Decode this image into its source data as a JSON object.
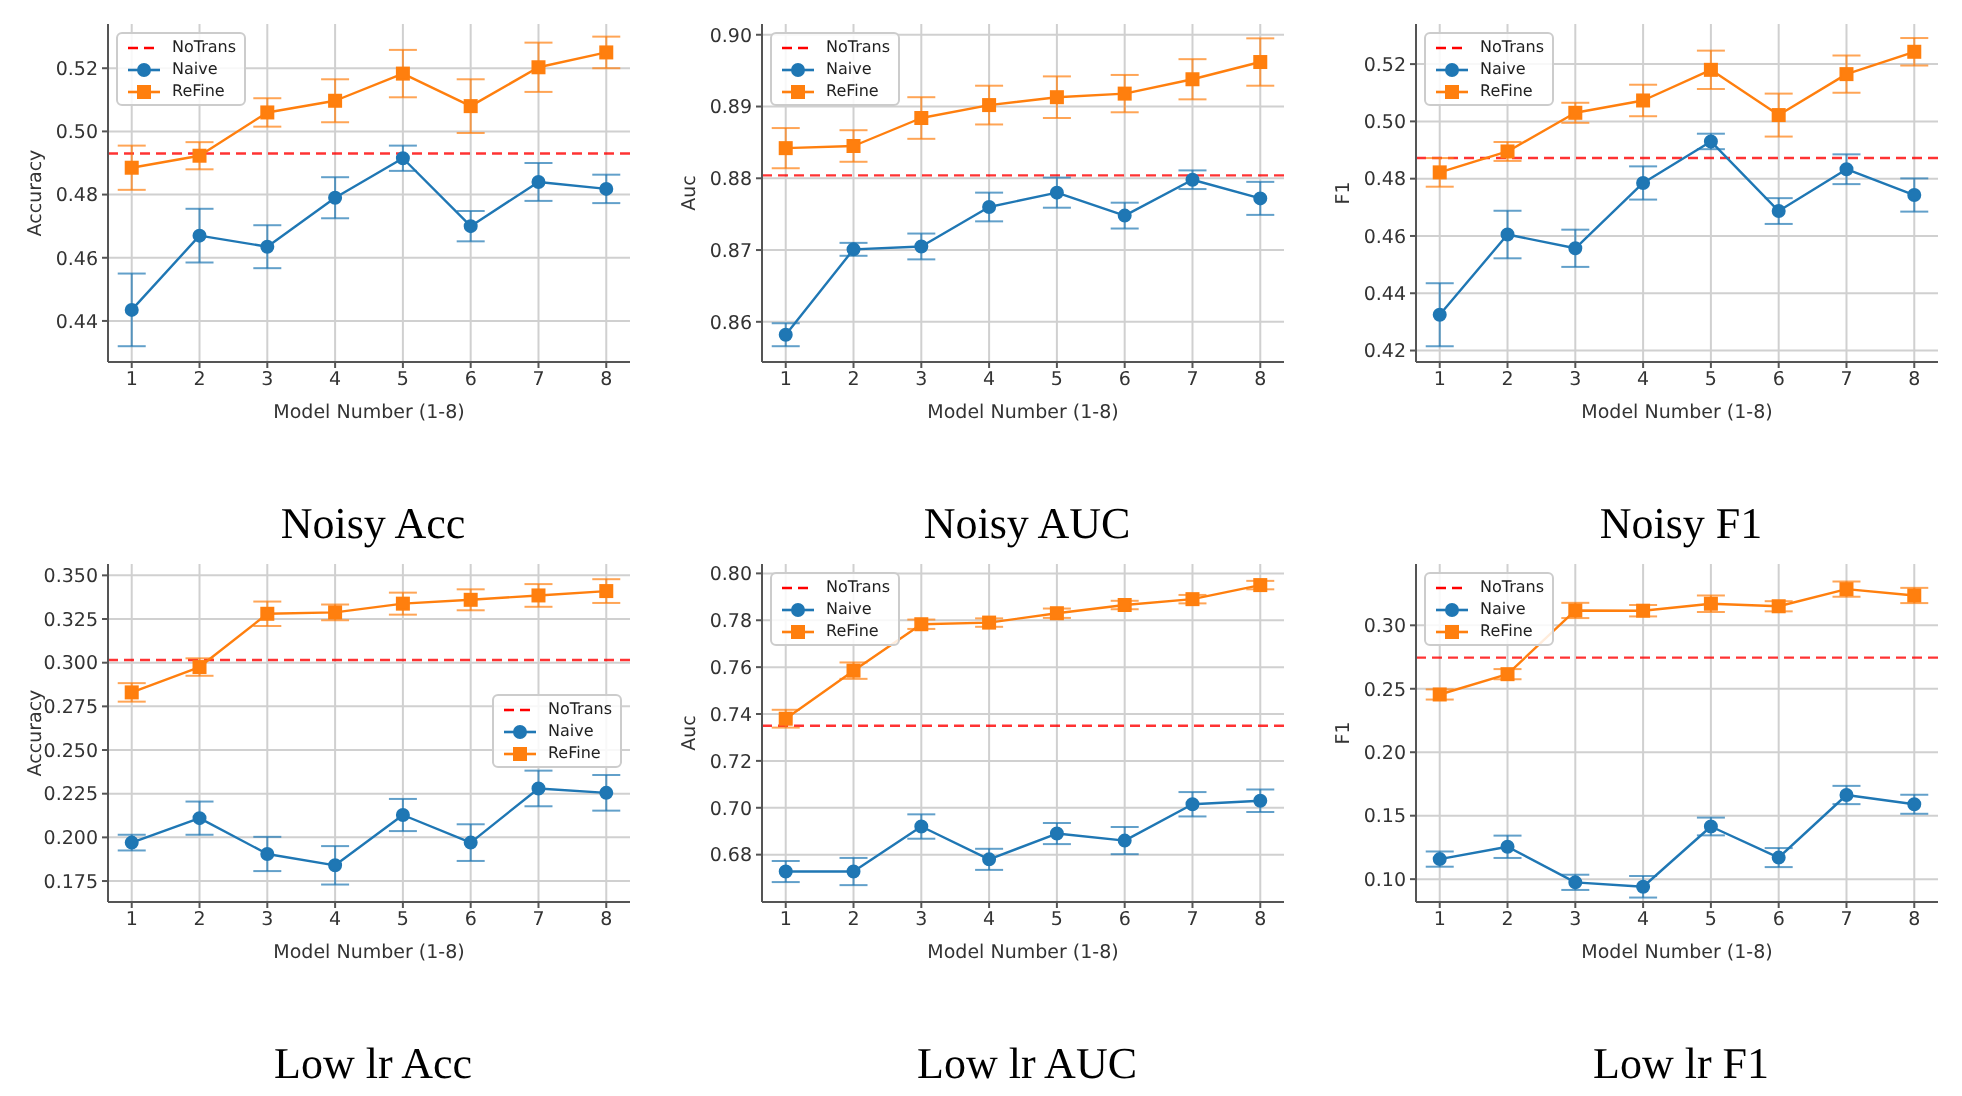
{
  "chart_data": [
    {
      "type": "line",
      "title": "Noisy Acc",
      "xlabel": "Model Number (1-8)",
      "ylabel": "Accuracy",
      "x": [
        1,
        2,
        3,
        4,
        5,
        6,
        7,
        8
      ],
      "xlim": [
        0.65,
        8.35
      ],
      "xticks": [
        1,
        2,
        3,
        4,
        5,
        6,
        7,
        8
      ],
      "ylim": [
        0.427,
        0.534
      ],
      "yticks": [
        0.44,
        0.46,
        0.48,
        {
          "value": 0.5,
          "label": "0.50"
        },
        0.52
      ],
      "grid": true,
      "legend": "top left",
      "line_style": "solid",
      "ref_lines": [
        {
          "axis": "y",
          "value": 0.493,
          "label": "NoTrans",
          "color": "#ff0000",
          "line_style": "dashed"
        }
      ],
      "series": [
        {
          "name": "Naive",
          "color": "#1f77b4",
          "marker": "circle",
          "values": [
            0.4435,
            0.467,
            0.4635,
            0.479,
            0.4915,
            0.47,
            0.484,
            0.4818
          ],
          "errors": [
            0.0115,
            0.0085,
            0.0068,
            0.0065,
            0.004,
            0.0048,
            0.006,
            0.0045
          ]
        },
        {
          "name": "ReFine",
          "color": "#ff7f0e",
          "marker": "square",
          "values": [
            0.4885,
            0.4923,
            0.506,
            0.5097,
            0.5183,
            0.508,
            0.5203,
            0.525
          ],
          "errors": [
            0.007,
            0.0043,
            0.0045,
            0.0068,
            0.0075,
            0.0085,
            0.0078,
            0.005
          ]
        }
      ]
    },
    {
      "type": "line",
      "title": "Noisy AUC",
      "xlabel": "Model Number (1-8)",
      "ylabel": "Auc",
      "x": [
        1,
        2,
        3,
        4,
        5,
        6,
        7,
        8
      ],
      "xlim": [
        0.65,
        8.35
      ],
      "xticks": [
        1,
        2,
        3,
        4,
        5,
        6,
        7,
        8
      ],
      "ylim": [
        0.8544,
        0.9015
      ],
      "yticks": [
        0.86,
        0.87,
        0.88,
        0.89,
        {
          "value": 0.9,
          "label": "0.90"
        }
      ],
      "grid": true,
      "legend": "top left",
      "line_style": "solid",
      "ref_lines": [
        {
          "axis": "y",
          "value": 0.8804,
          "label": "NoTrans",
          "color": "#ff0000",
          "line_style": "dashed"
        }
      ],
      "series": [
        {
          "name": "Naive",
          "color": "#1f77b4",
          "marker": "circle",
          "values": [
            0.8582,
            0.8701,
            0.8705,
            0.876,
            0.878,
            0.8748,
            0.8798,
            0.8772
          ],
          "errors": [
            0.0016,
            0.0009,
            0.0018,
            0.002,
            0.0021,
            0.0018,
            0.0013,
            0.0023
          ]
        },
        {
          "name": "ReFine",
          "color": "#ff7f0e",
          "marker": "square",
          "values": [
            0.8842,
            0.8845,
            0.8884,
            0.8902,
            0.8913,
            0.8918,
            0.8938,
            0.8962
          ],
          "errors": [
            0.0028,
            0.0022,
            0.0029,
            0.0027,
            0.0029,
            0.0026,
            0.0028,
            0.0033
          ]
        }
      ]
    },
    {
      "type": "line",
      "title": "Noisy F1",
      "xlabel": "Model Number (1-8)",
      "ylabel": "F1",
      "x": [
        1,
        2,
        3,
        4,
        5,
        6,
        7,
        8
      ],
      "xlim": [
        0.65,
        8.35
      ],
      "xticks": [
        1,
        2,
        3,
        4,
        5,
        6,
        7,
        8
      ],
      "ylim": [
        0.416,
        0.534
      ],
      "yticks": [
        0.42,
        0.44,
        0.46,
        0.48,
        {
          "value": 0.5,
          "label": "0.50"
        },
        0.52
      ],
      "grid": true,
      "legend": "top left",
      "line_style": "solid",
      "ref_lines": [
        {
          "axis": "y",
          "value": 0.4872,
          "label": "NoTrans",
          "color": "#ff0000",
          "line_style": "dashed"
        }
      ],
      "series": [
        {
          "name": "Naive",
          "color": "#1f77b4",
          "marker": "circle",
          "values": [
            0.4325,
            0.4605,
            0.4557,
            0.4785,
            0.493,
            0.4687,
            0.4833,
            0.4743
          ],
          "errors": [
            0.011,
            0.0083,
            0.0065,
            0.0058,
            0.0027,
            0.0045,
            0.0052,
            0.0058
          ]
        },
        {
          "name": "ReFine",
          "color": "#ff7f0e",
          "marker": "square",
          "values": [
            0.4822,
            0.4895,
            0.503,
            0.5073,
            0.518,
            0.5022,
            0.5165,
            0.5243
          ],
          "errors": [
            0.005,
            0.0033,
            0.0035,
            0.0055,
            0.0067,
            0.0075,
            0.0065,
            0.0048
          ]
        }
      ]
    },
    {
      "type": "line",
      "title": "Low lr Acc",
      "xlabel": "Model Number (1-8)",
      "ylabel": "Accuracy",
      "x": [
        1,
        2,
        3,
        4,
        5,
        6,
        7,
        8
      ],
      "xlim": [
        0.65,
        8.35
      ],
      "xticks": [
        1,
        2,
        3,
        4,
        5,
        6,
        7,
        8
      ],
      "ylim": [
        0.163,
        0.3565
      ],
      "yticks": [
        0.175,
        {
          "value": 0.2,
          "label": "0.200"
        },
        0.225,
        {
          "value": 0.25,
          "label": "0.250"
        },
        0.275,
        {
          "value": 0.3,
          "label": "0.300"
        },
        0.325,
        {
          "value": 0.35,
          "label": "0.350"
        }
      ],
      "grid": true,
      "legend": "right",
      "line_style": "solid",
      "ref_lines": [
        {
          "axis": "y",
          "value": 0.3015,
          "label": "NoTrans",
          "color": "#ff0000",
          "line_style": "dashed"
        }
      ],
      "series": [
        {
          "name": "Naive",
          "color": "#1f77b4",
          "marker": "circle",
          "values": [
            0.197,
            0.211,
            0.1905,
            0.184,
            0.2128,
            0.197,
            0.228,
            0.2255
          ],
          "errors": [
            0.0045,
            0.0095,
            0.0098,
            0.011,
            0.0092,
            0.0105,
            0.0102,
            0.0102
          ]
        },
        {
          "name": "ReFine",
          "color": "#ff7f0e",
          "marker": "square",
          "values": [
            0.283,
            0.2975,
            0.328,
            0.3288,
            0.3338,
            0.336,
            0.3385,
            0.341
          ],
          "errors": [
            0.0053,
            0.005,
            0.007,
            0.0045,
            0.0063,
            0.006,
            0.0065,
            0.0068
          ]
        }
      ]
    },
    {
      "type": "line",
      "title": "Low lr AUC",
      "xlabel": "Model Number (1-8)",
      "ylabel": "Auc",
      "x": [
        1,
        2,
        3,
        4,
        5,
        6,
        7,
        8
      ],
      "xlim": [
        0.65,
        8.35
      ],
      "xticks": [
        1,
        2,
        3,
        4,
        5,
        6,
        7,
        8
      ],
      "ylim": [
        0.6598,
        0.804
      ],
      "yticks": [
        0.68,
        {
          "value": 0.7,
          "label": "0.70"
        },
        0.72,
        0.74,
        0.76,
        0.78,
        {
          "value": 0.8,
          "label": "0.80"
        }
      ],
      "grid": true,
      "legend": "top left",
      "line_style": "solid",
      "ref_lines": [
        {
          "axis": "y",
          "value": 0.735,
          "label": "NoTrans",
          "color": "#ff0000",
          "line_style": "dashed"
        }
      ],
      "series": [
        {
          "name": "Naive",
          "color": "#1f77b4",
          "marker": "circle",
          "values": [
            0.6728,
            0.6728,
            0.692,
            0.678,
            0.689,
            0.686,
            0.7015,
            0.703
          ],
          "errors": [
            0.0045,
            0.0058,
            0.0052,
            0.0045,
            0.0045,
            0.0058,
            0.0052,
            0.0048
          ]
        },
        {
          "name": "ReFine",
          "color": "#ff7f0e",
          "marker": "square",
          "values": [
            0.738,
            0.7585,
            0.7783,
            0.779,
            0.783,
            0.7865,
            0.789,
            0.795
          ],
          "errors": [
            0.0038,
            0.0035,
            0.002,
            0.0018,
            0.002,
            0.0018,
            0.0018,
            0.0018
          ]
        }
      ]
    },
    {
      "type": "line",
      "title": "Low lr F1",
      "xlabel": "Model Number (1-8)",
      "ylabel": "F1",
      "x": [
        1,
        2,
        3,
        4,
        5,
        6,
        7,
        8
      ],
      "xlim": [
        0.65,
        8.35
      ],
      "xticks": [
        1,
        2,
        3,
        4,
        5,
        6,
        7,
        8
      ],
      "ylim": [
        0.082,
        0.3483
      ],
      "yticks": [
        {
          "value": 0.1,
          "label": "0.10"
        },
        0.15,
        {
          "value": 0.2,
          "label": "0.20"
        },
        0.25,
        {
          "value": 0.3,
          "label": "0.30"
        }
      ],
      "grid": true,
      "legend": "top left",
      "line_style": "solid",
      "ref_lines": [
        {
          "axis": "y",
          "value": 0.2745,
          "label": "NoTrans",
          "color": "#ff0000",
          "line_style": "dashed"
        }
      ],
      "series": [
        {
          "name": "Naive",
          "color": "#1f77b4",
          "marker": "circle",
          "values": [
            0.1158,
            0.1255,
            0.0975,
            0.094,
            0.1415,
            0.117,
            0.1663,
            0.159
          ],
          "errors": [
            0.006,
            0.0088,
            0.006,
            0.0085,
            0.007,
            0.0075,
            0.0072,
            0.0075
          ]
        },
        {
          "name": "ReFine",
          "color": "#ff7f0e",
          "marker": "square",
          "values": [
            0.2455,
            0.2615,
            0.3117,
            0.3115,
            0.317,
            0.315,
            0.3285,
            0.3235
          ],
          "errors": [
            0.004,
            0.004,
            0.006,
            0.0045,
            0.0065,
            0.004,
            0.006,
            0.006
          ]
        }
      ]
    }
  ]
}
